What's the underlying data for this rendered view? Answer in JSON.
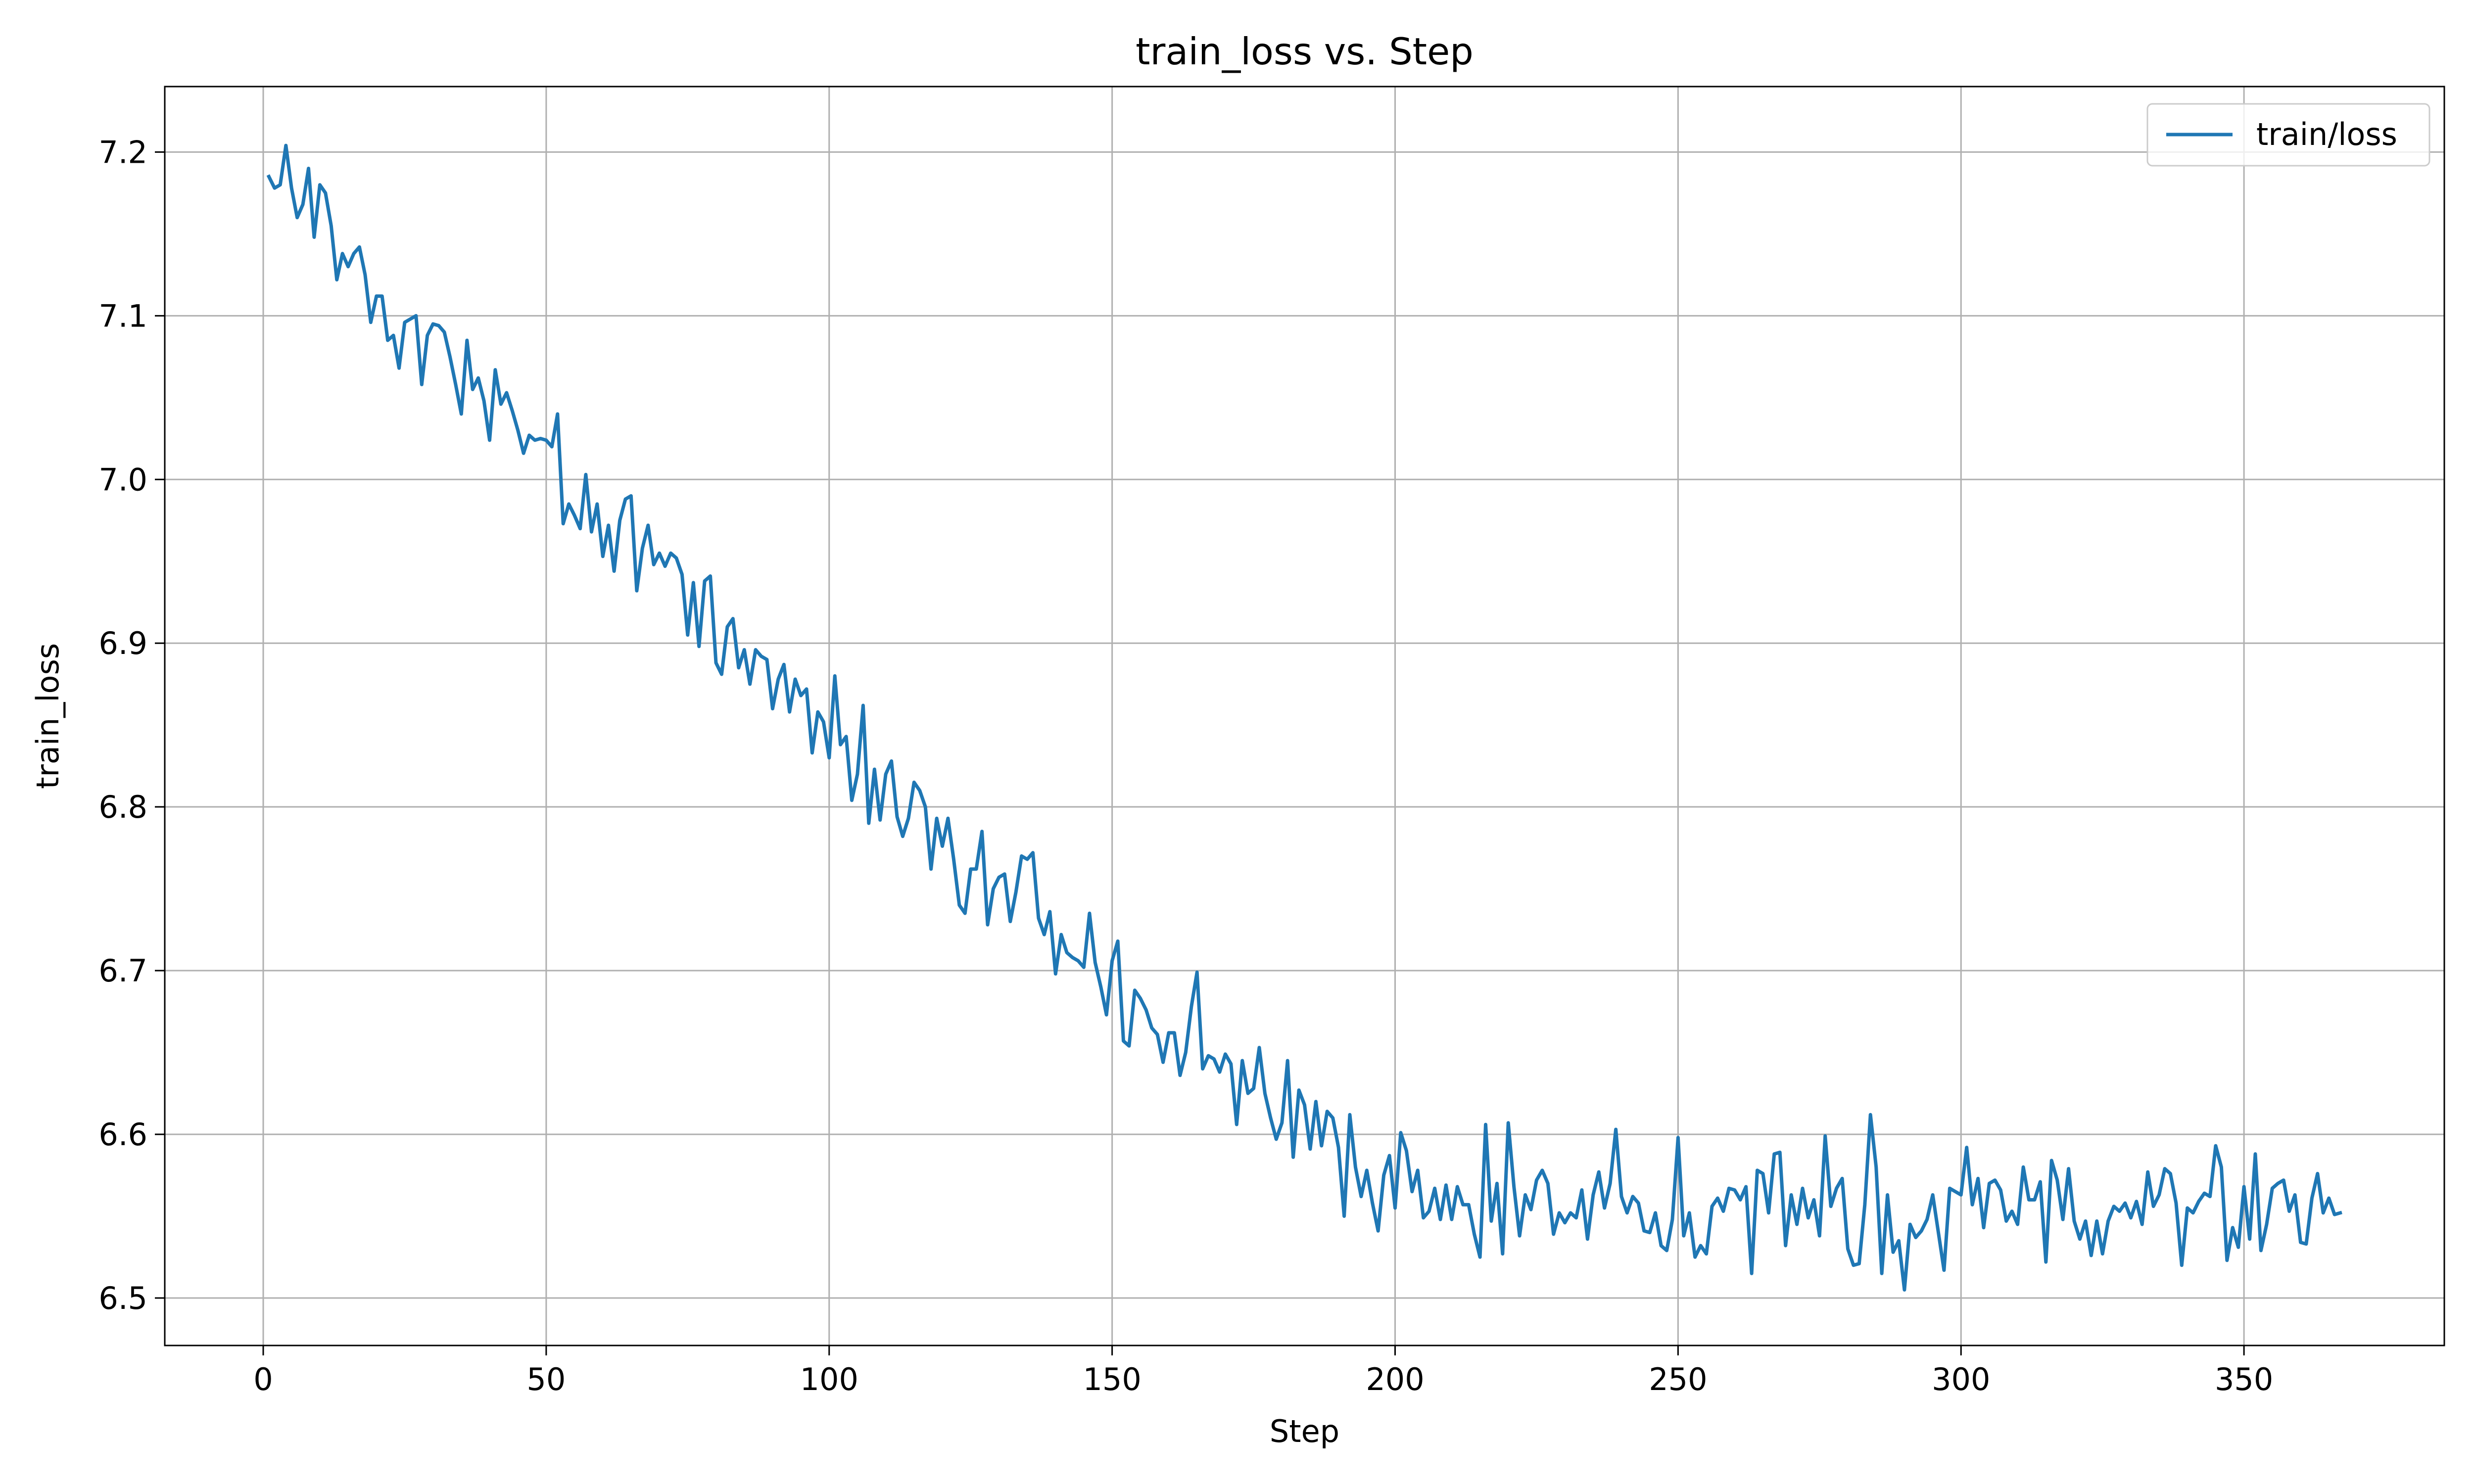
{
  "chart_data": {
    "type": "line",
    "title": "train_loss vs. Step",
    "xlabel": "Step",
    "ylabel": "train_loss",
    "xlim": [
      -17.4,
      385.4
    ],
    "ylim": [
      6.471,
      7.24
    ],
    "grid": true,
    "legend": "top-right",
    "x_ticks": [
      0,
      50,
      100,
      150,
      200,
      250,
      300,
      350
    ],
    "y_ticks": [
      6.5,
      6.6,
      6.7,
      6.8,
      6.9,
      7.0,
      7.1,
      7.2
    ],
    "x_tick_labels": [
      "0",
      "50",
      "100",
      "150",
      "200",
      "250",
      "300",
      "350"
    ],
    "y_tick_labels": [
      "6.5",
      "6.6",
      "6.7",
      "6.8",
      "6.9",
      "7.0",
      "7.1",
      "7.2"
    ],
    "series": [
      {
        "name": "train/loss",
        "color": "#1f77b4",
        "x_start": 1,
        "x_step": 1,
        "values": [
          7.185,
          7.178,
          7.18,
          7.204,
          7.178,
          7.16,
          7.168,
          7.19,
          7.148,
          7.18,
          7.175,
          7.155,
          7.122,
          7.138,
          7.13,
          7.138,
          7.142,
          7.125,
          7.096,
          7.112,
          7.112,
          7.085,
          7.088,
          7.068,
          7.096,
          7.098,
          7.1,
          7.058,
          7.088,
          7.095,
          7.094,
          7.09,
          7.075,
          7.058,
          7.04,
          7.085,
          7.055,
          7.062,
          7.048,
          7.024,
          7.067,
          7.046,
          7.053,
          7.042,
          7.03,
          7.016,
          7.027,
          7.024,
          7.025,
          7.024,
          7.02,
          7.04,
          6.973,
          6.985,
          6.978,
          6.97,
          7.003,
          6.968,
          6.985,
          6.953,
          6.972,
          6.944,
          6.975,
          6.988,
          6.99,
          6.932,
          6.958,
          6.972,
          6.948,
          6.955,
          6.947,
          6.955,
          6.952,
          6.942,
          6.905,
          6.937,
          6.898,
          6.938,
          6.941,
          6.888,
          6.881,
          6.91,
          6.915,
          6.885,
          6.896,
          6.875,
          6.896,
          6.892,
          6.89,
          6.86,
          6.878,
          6.887,
          6.858,
          6.878,
          6.868,
          6.872,
          6.833,
          6.858,
          6.852,
          6.83,
          6.88,
          6.838,
          6.843,
          6.804,
          6.82,
          6.862,
          6.79,
          6.823,
          6.792,
          6.82,
          6.828,
          6.794,
          6.782,
          6.793,
          6.815,
          6.81,
          6.8,
          6.762,
          6.793,
          6.776,
          6.793,
          6.768,
          6.74,
          6.735,
          6.762,
          6.762,
          6.785,
          6.728,
          6.75,
          6.757,
          6.759,
          6.73,
          6.748,
          6.77,
          6.768,
          6.772,
          6.732,
          6.722,
          6.736,
          6.698,
          6.722,
          6.711,
          6.708,
          6.706,
          6.702,
          6.735,
          6.705,
          6.69,
          6.673,
          6.706,
          6.718,
          6.657,
          6.654,
          6.688,
          6.683,
          6.676,
          6.665,
          6.661,
          6.644,
          6.662,
          6.662,
          6.636,
          6.65,
          6.678,
          6.699,
          6.64,
          6.648,
          6.646,
          6.638,
          6.649,
          6.643,
          6.606,
          6.645,
          6.625,
          6.628,
          6.653,
          6.625,
          6.61,
          6.597,
          6.607,
          6.645,
          6.586,
          6.627,
          6.618,
          6.591,
          6.62,
          6.593,
          6.614,
          6.61,
          6.592,
          6.55,
          6.612,
          6.58,
          6.562,
          6.578,
          6.558,
          6.541,
          6.575,
          6.587,
          6.555,
          6.601,
          6.59,
          6.565,
          6.578,
          6.549,
          6.553,
          6.567,
          6.548,
          6.569,
          6.548,
          6.568,
          6.557,
          6.557,
          6.539,
          6.525,
          6.606,
          6.547,
          6.57,
          6.527,
          6.607,
          6.568,
          6.538,
          6.563,
          6.554,
          6.572,
          6.578,
          6.57,
          6.539,
          6.552,
          6.546,
          6.552,
          6.549,
          6.566,
          6.536,
          6.563,
          6.577,
          6.555,
          6.57,
          6.603,
          6.562,
          6.552,
          6.562,
          6.558,
          6.541,
          6.54,
          6.552,
          6.532,
          6.529,
          6.548,
          6.598,
          6.538,
          6.552,
          6.525,
          6.532,
          6.527,
          6.556,
          6.561,
          6.553,
          6.567,
          6.566,
          6.56,
          6.568,
          6.515,
          6.578,
          6.576,
          6.552,
          6.588,
          6.589,
          6.532,
          6.563,
          6.545,
          6.567,
          6.549,
          6.56,
          6.538,
          6.599,
          6.556,
          6.567,
          6.573,
          6.53,
          6.52,
          6.521,
          6.557,
          6.612,
          6.58,
          6.515,
          6.563,
          6.528,
          6.535,
          6.505,
          6.545,
          6.537,
          6.541,
          6.548,
          6.563,
          6.54,
          6.517,
          6.567,
          6.565,
          6.563,
          6.592,
          6.557,
          6.573,
          6.543,
          6.57,
          6.572,
          6.566,
          6.547,
          6.553,
          6.545,
          6.58,
          6.56,
          6.56,
          6.571,
          6.522,
          6.584,
          6.572,
          6.548,
          6.579,
          6.547,
          6.536,
          6.547,
          6.526,
          6.547,
          6.527,
          6.547,
          6.556,
          6.553,
          6.558,
          6.549,
          6.559,
          6.545,
          6.577,
          6.556,
          6.563,
          6.579,
          6.576,
          6.558,
          6.52,
          6.555,
          6.552,
          6.559,
          6.564,
          6.562,
          6.593,
          6.58,
          6.523,
          6.543,
          6.531,
          6.568,
          6.536,
          6.588,
          6.529,
          6.545,
          6.567,
          6.57,
          6.572,
          6.553,
          6.563,
          6.534,
          6.533,
          6.561,
          6.576,
          6.552,
          6.561,
          6.551,
          6.552
        ]
      }
    ]
  }
}
